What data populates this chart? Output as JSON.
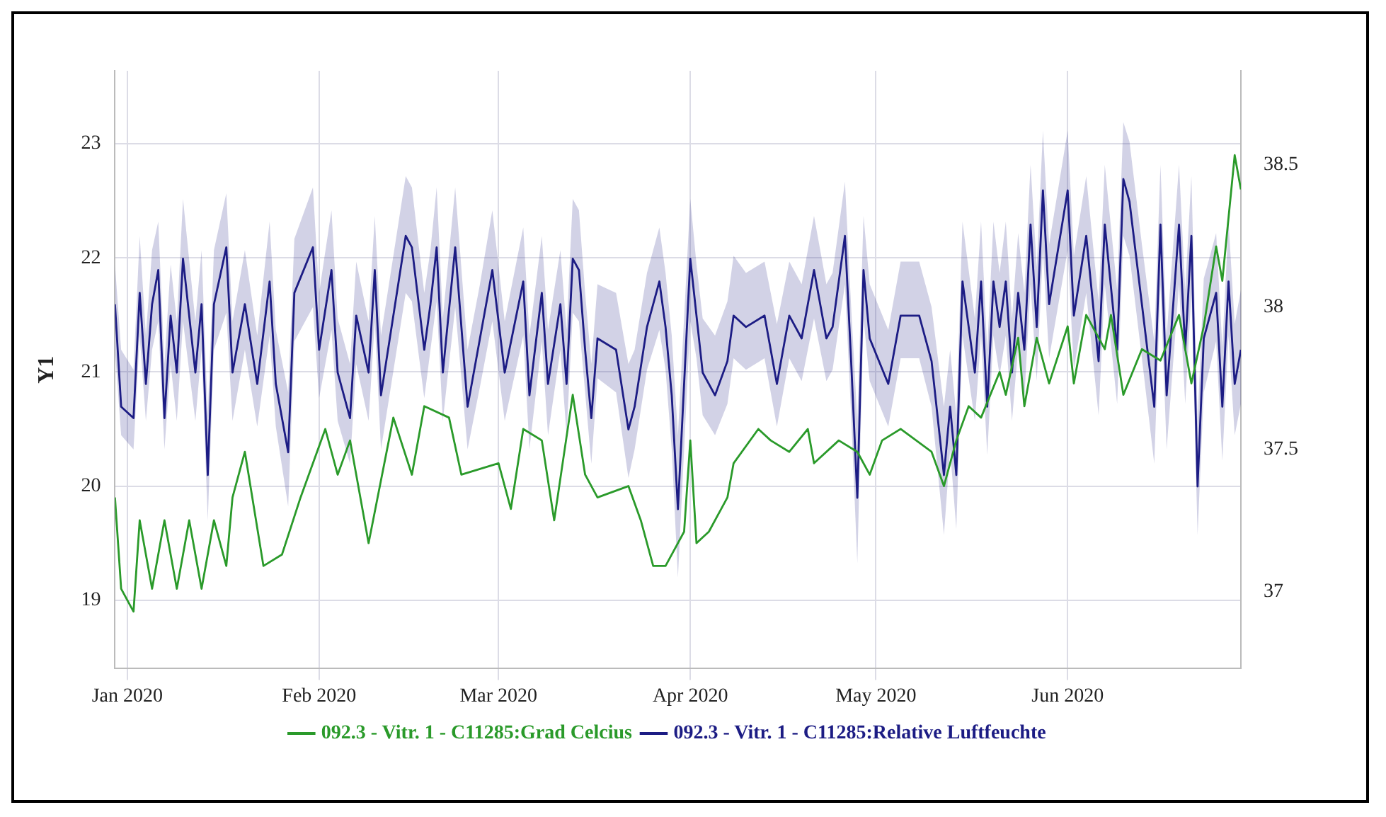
{
  "chart_data": {
    "type": "line",
    "ylabel": "Y1",
    "legend": "bottom",
    "grid": true,
    "marker": "none",
    "line_style": "solid",
    "xlim": [
      "2019-12-30",
      "2020-06-29"
    ],
    "xticks": [
      {
        "value": "2020-01-01",
        "label": "Jan 2020"
      },
      {
        "value": "2020-02-01",
        "label": "Feb 2020"
      },
      {
        "value": "2020-03-01",
        "label": "Mar 2020"
      },
      {
        "value": "2020-04-01",
        "label": "Apr 2020"
      },
      {
        "value": "2020-05-01",
        "label": "May 2020"
      },
      {
        "value": "2020-06-01",
        "label": "Jun 2020"
      }
    ],
    "ylim": [
      18.4,
      23.64
    ],
    "yticks": [
      19,
      20,
      21,
      22,
      23
    ],
    "y2lim": [
      36.73,
      38.83
    ],
    "y2ticks": [
      37,
      37.5,
      38,
      38.5
    ],
    "series": [
      {
        "name": "092.3 - Vitr. 1 - C11285:Grad Celcius",
        "color": "#2a9a2a",
        "axis": "y",
        "x": [
          "2019-12-30",
          "2019-12-31",
          "2020-01-02",
          "2020-01-03",
          "2020-01-05",
          "2020-01-07",
          "2020-01-09",
          "2020-01-11",
          "2020-01-13",
          "2020-01-15",
          "2020-01-17",
          "2020-01-18",
          "2020-01-20",
          "2020-01-23",
          "2020-01-26",
          "2020-01-29",
          "2020-02-02",
          "2020-02-04",
          "2020-02-06",
          "2020-02-09",
          "2020-02-13",
          "2020-02-16",
          "2020-02-18",
          "2020-02-22",
          "2020-02-24",
          "2020-03-01",
          "2020-03-03",
          "2020-03-05",
          "2020-03-08",
          "2020-03-10",
          "2020-03-13",
          "2020-03-15",
          "2020-03-17",
          "2020-03-22",
          "2020-03-24",
          "2020-03-26",
          "2020-03-28",
          "2020-03-31",
          "2020-04-01",
          "2020-04-02",
          "2020-04-04",
          "2020-04-07",
          "2020-04-08",
          "2020-04-12",
          "2020-04-14",
          "2020-04-17",
          "2020-04-20",
          "2020-04-21",
          "2020-04-25",
          "2020-04-28",
          "2020-04-30",
          "2020-05-02",
          "2020-05-05",
          "2020-05-10",
          "2020-05-12",
          "2020-05-14",
          "2020-05-16",
          "2020-05-18",
          "2020-05-21",
          "2020-05-22",
          "2020-05-24",
          "2020-05-25",
          "2020-05-27",
          "2020-05-29",
          "2020-06-01",
          "2020-06-02",
          "2020-06-04",
          "2020-06-07",
          "2020-06-08",
          "2020-06-10",
          "2020-06-13",
          "2020-06-16",
          "2020-06-19",
          "2020-06-21",
          "2020-06-23",
          "2020-06-25",
          "2020-06-26",
          "2020-06-28",
          "2020-06-29"
        ],
        "values": [
          19.9,
          19.1,
          18.9,
          19.7,
          19.1,
          19.7,
          19.1,
          19.7,
          19.1,
          19.7,
          19.3,
          19.9,
          20.3,
          19.3,
          19.4,
          19.9,
          20.5,
          20.1,
          20.4,
          19.5,
          20.6,
          20.1,
          20.7,
          20.6,
          20.1,
          20.2,
          19.8,
          20.5,
          20.4,
          19.7,
          20.8,
          20.1,
          19.9,
          20.0,
          19.7,
          19.3,
          19.3,
          19.6,
          20.4,
          19.5,
          19.6,
          19.9,
          20.2,
          20.5,
          20.4,
          20.3,
          20.5,
          20.2,
          20.4,
          20.3,
          20.1,
          20.4,
          20.5,
          20.3,
          20.0,
          20.4,
          20.7,
          20.6,
          21.0,
          20.8,
          21.3,
          20.7,
          21.3,
          20.9,
          21.4,
          20.9,
          21.5,
          21.2,
          21.5,
          20.8,
          21.2,
          21.1,
          21.5,
          20.9,
          21.4,
          22.1,
          21.8,
          22.9,
          22.6
        ]
      },
      {
        "name": "092.3 - Vitr. 1 - C11285:Relative Luftfeuchte",
        "color": "#1c1c84",
        "axis": "y2",
        "x": [
          "2019-12-30",
          "2019-12-31",
          "2020-01-02",
          "2020-01-03",
          "2020-01-04",
          "2020-01-05",
          "2020-01-06",
          "2020-01-07",
          "2020-01-08",
          "2020-01-09",
          "2020-01-10",
          "2020-01-12",
          "2020-01-13",
          "2020-01-14",
          "2020-01-15",
          "2020-01-17",
          "2020-01-18",
          "2020-01-20",
          "2020-01-22",
          "2020-01-24",
          "2020-01-25",
          "2020-01-27",
          "2020-01-28",
          "2020-01-31",
          "2020-02-01",
          "2020-02-03",
          "2020-02-04",
          "2020-02-06",
          "2020-02-07",
          "2020-02-09",
          "2020-02-10",
          "2020-02-11",
          "2020-02-15",
          "2020-02-16",
          "2020-02-18",
          "2020-02-19",
          "2020-02-20",
          "2020-02-21",
          "2020-02-23",
          "2020-02-25",
          "2020-02-27",
          "2020-02-29",
          "2020-03-02",
          "2020-03-05",
          "2020-03-06",
          "2020-03-08",
          "2020-03-09",
          "2020-03-11",
          "2020-03-12",
          "2020-03-13",
          "2020-03-14",
          "2020-03-15",
          "2020-03-16",
          "2020-03-17",
          "2020-03-20",
          "2020-03-22",
          "2020-03-23",
          "2020-03-25",
          "2020-03-27",
          "2020-03-28",
          "2020-03-29",
          "2020-03-30",
          "2020-04-01",
          "2020-04-02",
          "2020-04-03",
          "2020-04-05",
          "2020-04-07",
          "2020-04-08",
          "2020-04-10",
          "2020-04-13",
          "2020-04-15",
          "2020-04-17",
          "2020-04-19",
          "2020-04-21",
          "2020-04-23",
          "2020-04-24",
          "2020-04-26",
          "2020-04-27",
          "2020-04-28",
          "2020-04-29",
          "2020-04-30",
          "2020-05-03",
          "2020-05-05",
          "2020-05-08",
          "2020-05-10",
          "2020-05-12",
          "2020-05-13",
          "2020-05-14",
          "2020-05-15",
          "2020-05-17",
          "2020-05-18",
          "2020-05-19",
          "2020-05-20",
          "2020-05-21",
          "2020-05-22",
          "2020-05-23",
          "2020-05-24",
          "2020-05-25",
          "2020-05-26",
          "2020-05-27",
          "2020-05-28",
          "2020-05-29",
          "2020-06-01",
          "2020-06-02",
          "2020-06-04",
          "2020-06-06",
          "2020-06-07",
          "2020-06-09",
          "2020-06-10",
          "2020-06-11",
          "2020-06-13",
          "2020-06-15",
          "2020-06-16",
          "2020-06-17",
          "2020-06-19",
          "2020-06-20",
          "2020-06-21",
          "2020-06-22",
          "2020-06-23",
          "2020-06-25",
          "2020-06-26",
          "2020-06-27",
          "2020-06-28",
          "2020-06-29"
        ],
        "values": [
          38.01,
          37.65,
          37.61,
          38.05,
          37.73,
          38.01,
          38.13,
          37.61,
          37.97,
          37.77,
          38.17,
          37.77,
          38.01,
          37.41,
          38.01,
          38.21,
          37.77,
          38.01,
          37.73,
          38.09,
          37.73,
          37.49,
          38.05,
          38.21,
          37.85,
          38.13,
          37.77,
          37.61,
          37.97,
          37.77,
          38.13,
          37.69,
          38.25,
          38.21,
          37.85,
          38.01,
          38.21,
          37.77,
          38.21,
          37.65,
          37.89,
          38.13,
          37.77,
          38.09,
          37.69,
          38.05,
          37.73,
          38.01,
          37.73,
          38.17,
          38.13,
          37.85,
          37.61,
          37.89,
          37.85,
          37.57,
          37.65,
          37.93,
          38.09,
          37.93,
          37.69,
          37.29,
          38.17,
          37.97,
          37.77,
          37.69,
          37.81,
          37.97,
          37.93,
          37.97,
          37.73,
          37.97,
          37.89,
          38.13,
          37.89,
          37.93,
          38.25,
          37.81,
          37.33,
          38.13,
          37.89,
          37.73,
          37.97,
          37.97,
          37.81,
          37.41,
          37.65,
          37.41,
          38.09,
          37.77,
          38.09,
          37.65,
          38.09,
          37.93,
          38.09,
          37.77,
          38.05,
          37.85,
          38.29,
          37.93,
          38.41,
          38.01,
          38.41,
          37.97,
          38.25,
          37.81,
          38.29,
          37.85,
          38.45,
          38.37,
          38.01,
          37.65,
          38.29,
          37.69,
          38.29,
          37.85,
          38.25,
          37.37,
          37.89,
          38.05,
          37.65,
          38.09,
          37.73,
          37.85
        ],
        "lower": [
          37.85,
          37.55,
          37.5,
          37.9,
          37.6,
          37.85,
          37.95,
          37.5,
          37.8,
          37.6,
          37.95,
          37.6,
          37.85,
          37.25,
          37.85,
          37.98,
          37.6,
          37.85,
          37.58,
          37.9,
          37.58,
          37.3,
          37.88,
          38.0,
          37.68,
          37.92,
          37.6,
          37.45,
          37.8,
          37.6,
          37.95,
          37.5,
          38.05,
          38.02,
          37.68,
          37.85,
          38.02,
          37.6,
          38.0,
          37.5,
          37.72,
          37.95,
          37.6,
          37.9,
          37.5,
          37.88,
          37.55,
          37.85,
          37.55,
          37.98,
          37.95,
          37.7,
          37.45,
          37.75,
          37.7,
          37.4,
          37.5,
          37.78,
          37.92,
          37.78,
          37.5,
          37.05,
          37.95,
          37.82,
          37.62,
          37.55,
          37.66,
          37.82,
          37.78,
          37.82,
          37.58,
          37.82,
          37.74,
          37.96,
          37.74,
          37.78,
          38.08,
          37.62,
          37.1,
          37.96,
          37.74,
          37.58,
          37.82,
          37.82,
          37.65,
          37.2,
          37.5,
          37.22,
          37.9,
          37.6,
          37.9,
          37.48,
          37.9,
          37.76,
          37.9,
          37.6,
          37.86,
          37.68,
          38.08,
          37.74,
          38.2,
          37.82,
          38.2,
          37.78,
          38.05,
          37.62,
          38.08,
          37.66,
          38.25,
          38.18,
          37.82,
          37.45,
          38.08,
          37.5,
          38.08,
          37.66,
          38.05,
          37.2,
          37.7,
          37.88,
          37.46,
          37.9,
          37.55,
          37.66
        ],
        "upper": [
          38.15,
          37.85,
          37.78,
          38.25,
          37.9,
          38.2,
          38.3,
          37.8,
          38.15,
          37.95,
          38.38,
          37.95,
          38.2,
          37.62,
          38.2,
          38.4,
          37.95,
          38.2,
          37.9,
          38.3,
          37.92,
          37.7,
          38.24,
          38.42,
          38.05,
          38.34,
          37.96,
          37.8,
          38.16,
          37.95,
          38.32,
          37.9,
          38.46,
          38.42,
          38.05,
          38.2,
          38.42,
          37.96,
          38.42,
          37.85,
          38.08,
          38.34,
          37.95,
          38.28,
          37.9,
          38.25,
          37.92,
          38.2,
          37.92,
          38.38,
          38.34,
          38.05,
          37.8,
          38.08,
          38.05,
          37.8,
          37.85,
          38.12,
          38.28,
          38.12,
          37.9,
          37.55,
          38.38,
          38.15,
          37.96,
          37.9,
          38.02,
          38.18,
          38.12,
          38.16,
          37.94,
          38.16,
          38.08,
          38.32,
          38.08,
          38.12,
          38.44,
          38.0,
          37.6,
          38.32,
          38.08,
          37.92,
          38.16,
          38.16,
          38.0,
          37.65,
          37.85,
          37.62,
          38.3,
          37.96,
          38.3,
          37.85,
          38.3,
          38.12,
          38.3,
          37.96,
          38.26,
          38.05,
          38.5,
          38.14,
          38.62,
          38.22,
          38.62,
          38.18,
          38.46,
          38.02,
          38.5,
          38.06,
          38.65,
          38.58,
          38.22,
          37.88,
          38.5,
          37.9,
          38.5,
          38.06,
          38.46,
          37.6,
          38.1,
          38.26,
          37.86,
          38.3,
          37.94,
          38.06
        ]
      }
    ]
  }
}
